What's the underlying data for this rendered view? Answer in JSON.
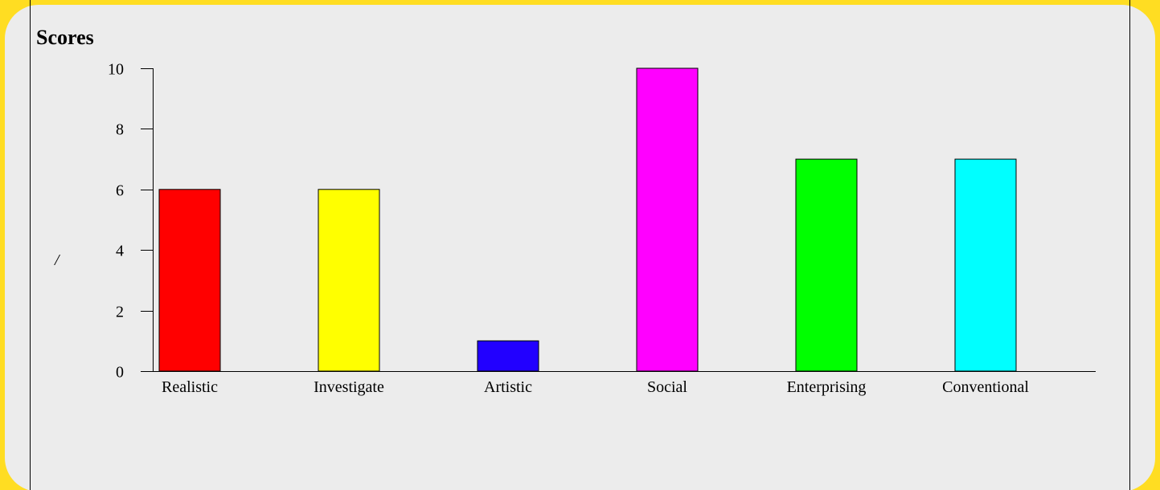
{
  "chart_data": {
    "type": "bar",
    "title": "Scores",
    "ylabel": "/",
    "xlabel": "",
    "categories": [
      "Realistic",
      "Investigate",
      "Artistic",
      "Social",
      "Enterprising",
      "Conventional"
    ],
    "values": [
      6,
      6,
      1,
      10,
      7,
      7
    ],
    "colors": [
      "#ff0000",
      "#ffff00",
      "#2200ff",
      "#ff00ff",
      "#00ff00",
      "#00ffff"
    ],
    "ylim": [
      0,
      10
    ],
    "yticks": [
      0,
      2,
      4,
      6,
      8,
      10
    ],
    "grid": false,
    "legend": "none"
  },
  "colors": {
    "page_background": "#ffdd22",
    "panel_background": "#ececec",
    "bar_outline": "#000000"
  }
}
